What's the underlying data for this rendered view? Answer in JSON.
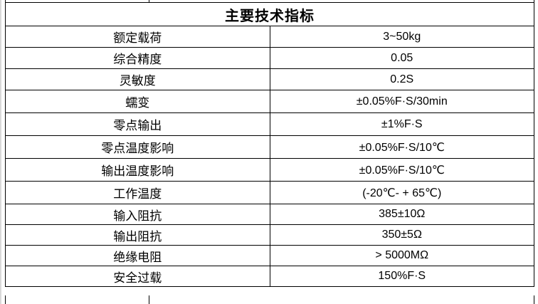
{
  "table": {
    "title": "主要技术指标",
    "rows": [
      {
        "label": "额定载荷",
        "value": "3~50kg"
      },
      {
        "label": "综合精度",
        "value": "0.05"
      },
      {
        "label": "灵敏度",
        "value": "0.2S"
      },
      {
        "label": "蠕变",
        "value": "±0.05%F·S/30min"
      },
      {
        "label": "零点输出",
        "value": "±1%F·S"
      },
      {
        "label": "零点温度影响",
        "value": "±0.05%F·S/10℃"
      },
      {
        "label": "输出温度影响",
        "value": "±0.05%F·S/10℃"
      },
      {
        "label": "工作温度",
        "value": "(-20℃- + 65℃)"
      },
      {
        "label": "输入阻抗",
        "value": "385±10Ω"
      },
      {
        "label": "输出阻抗",
        "value": "350±5Ω"
      },
      {
        "label": "绝缘电阻",
        "value": "> 5000MΩ"
      },
      {
        "label": "安全过载",
        "value": "150%F·S"
      }
    ]
  },
  "colors": {
    "border": "#000000",
    "background": "#ffffff",
    "text": "#000000",
    "edge_strip": "#d9d9d9"
  }
}
